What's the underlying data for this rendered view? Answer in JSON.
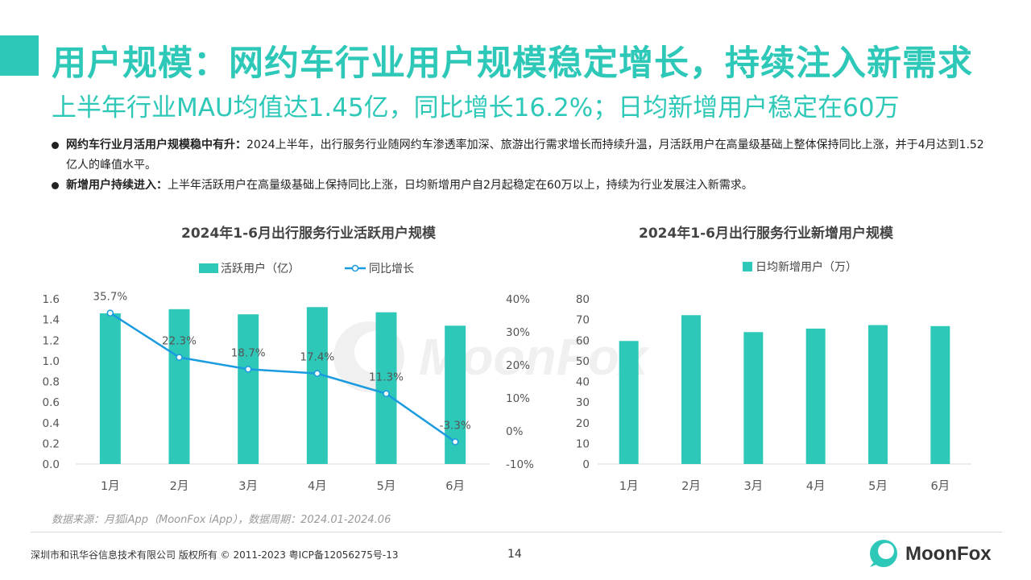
{
  "header": {
    "title": "用户规模：网约车行业用户规模稳定增长，持续注入新需求",
    "subtitle": "上半年行业MAU均值达1.45亿，同比增长16.2%；日均新增用户稳定在60万"
  },
  "bullets": [
    {
      "bold": "网约车行业月活用户规模稳中有升：",
      "text": "2024上半年，出行服务行业随网约车渗透率加深、旅游出行需求增长而持续升温，月活跃用户在高量级基础上整体保持同比上涨，并于4月达到1.52亿人的峰值水平。"
    },
    {
      "bold": "新增用户持续进入：",
      "text": "上半年活跃用户在高量级基础上保持同比上涨，日均新增用户自2月起稳定在60万以上，持续为行业发展注入新需求。"
    }
  ],
  "colors": {
    "accent": "#2ec8b8",
    "bar": "#2ec8b8",
    "line": "#1a9be0"
  },
  "chart_data": [
    {
      "type": "bar",
      "title": "2024年1-6月出行服务行业活跃用户规模",
      "categories": [
        "1月",
        "2月",
        "3月",
        "4月",
        "5月",
        "6月"
      ],
      "series": [
        {
          "name": "活跃用户（亿）",
          "type": "bar",
          "axis": "left",
          "values": [
            1.46,
            1.5,
            1.45,
            1.52,
            1.47,
            1.34
          ]
        },
        {
          "name": "同比增长",
          "type": "line",
          "axis": "right",
          "values": [
            35.7,
            22.3,
            18.7,
            17.4,
            11.3,
            -3.3
          ],
          "labels": [
            "35.7%",
            "22.3%",
            "18.7%",
            "17.4%",
            "11.3%",
            "-3.3%"
          ]
        }
      ],
      "ylim": [
        0,
        1.6
      ],
      "y_ticks": [
        "0.0",
        "0.2",
        "0.4",
        "0.6",
        "0.8",
        "1.0",
        "1.2",
        "1.4",
        "1.6"
      ],
      "y2lim": [
        -10,
        40
      ],
      "y2_ticks": [
        "-10%",
        "0%",
        "10%",
        "20%",
        "30%",
        "40%"
      ],
      "legend_position": "top-center",
      "grid": false
    },
    {
      "type": "bar",
      "title": "2024年1-6月出行服务行业新增用户规模",
      "categories": [
        "1月",
        "2月",
        "3月",
        "4月",
        "5月",
        "6月"
      ],
      "series": [
        {
          "name": "日均新增用户（万）",
          "values": [
            59.6,
            72.1,
            63.9,
            65.6,
            67.3,
            66.8
          ]
        }
      ],
      "ylim": [
        0,
        80
      ],
      "y_ticks": [
        "0",
        "10",
        "20",
        "30",
        "40",
        "50",
        "60",
        "70",
        "80"
      ],
      "legend_position": "top-center",
      "grid": false
    }
  ],
  "footer": {
    "source": "数据来源：月狐iApp（MoonFox iApp），数据周期：2024.01-2024.06",
    "copyright": "深圳市和讯华谷信息技术有限公司 版权所有 © 2011-2023 粤ICP备12056275号-13",
    "page_number": "14",
    "logo_text": "MoonFox"
  },
  "watermark": {
    "text": "MoonFox"
  }
}
